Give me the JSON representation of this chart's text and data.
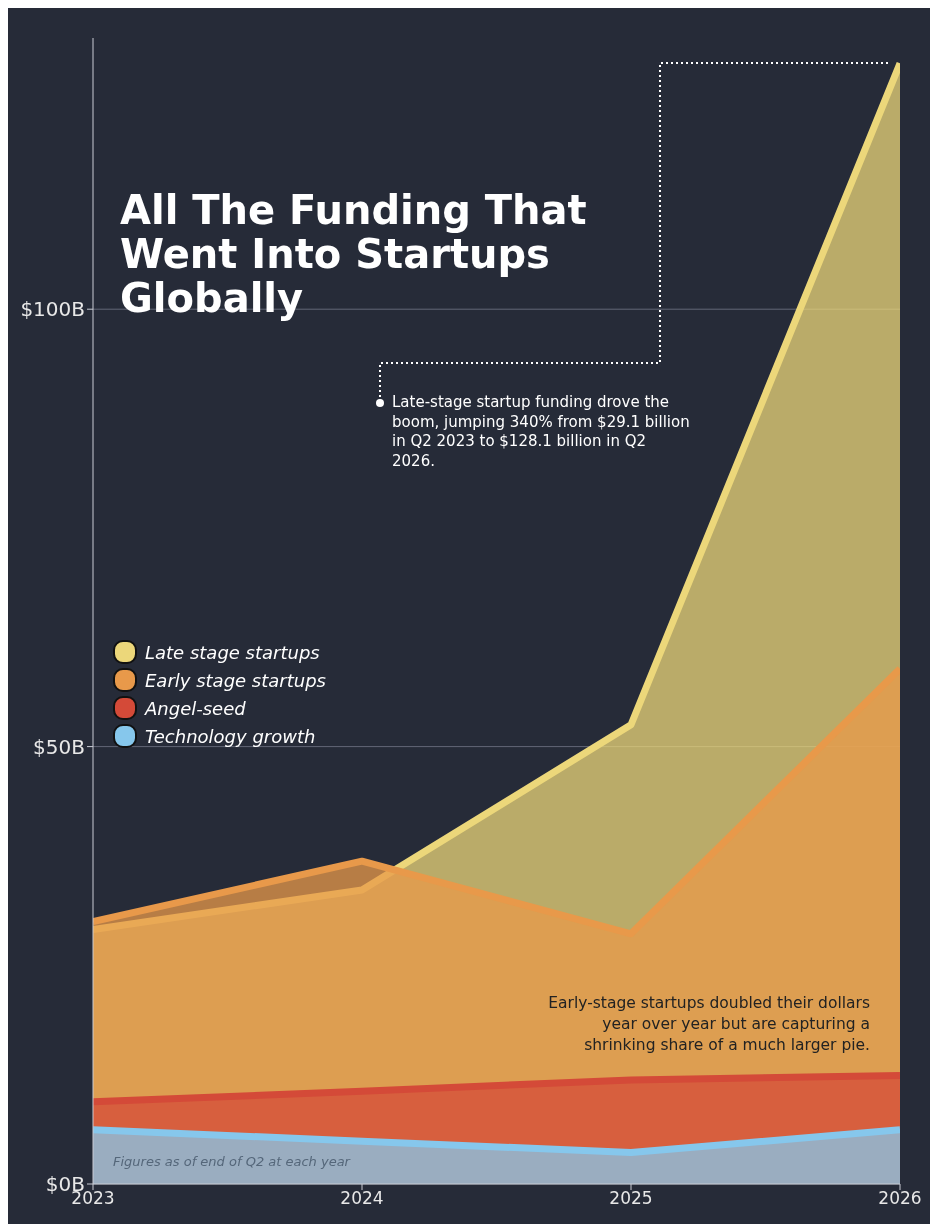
{
  "chart_data": {
    "type": "area",
    "title": "All The Funding That Went Into Startups Globally",
    "x": [
      2023,
      2024,
      2025,
      2026
    ],
    "xlim": [
      2023,
      2026
    ],
    "xticks": [
      2023,
      2024,
      2025,
      2026
    ],
    "ylim": [
      0,
      131
    ],
    "yticks": [
      {
        "value": 0,
        "label": "$0B"
      },
      {
        "value": 50,
        "label": "$50B"
      },
      {
        "value": 100,
        "label": "$100B"
      }
    ],
    "series": [
      {
        "name": "Late stage startups",
        "color": "#ecd77a",
        "values": [
          29.1,
          33.6,
          52.5,
          128.1
        ]
      },
      {
        "name": "Early stage startups",
        "color": "#e8994a",
        "values": [
          30.0,
          36.9,
          28.6,
          58.9
        ]
      },
      {
        "name": "Angel-seed",
        "color": "#d44a38",
        "values": [
          9.4,
          10.6,
          11.9,
          12.4
        ]
      },
      {
        "name": "Technology growth",
        "color": "#86c7ec",
        "values": [
          6.2,
          4.9,
          3.6,
          6.2
        ]
      }
    ],
    "annotations": [
      "Late-stage startup funding drove the boom, jumping 340% from $29.1 billion in Q2 2023 to $128.1 billion in Q2 2026.",
      "Early-stage startups doubled their dollars year over year but are capturing a shrinking share of a much larger pie.",
      "Figures as of end of Q2 at each year"
    ],
    "grid": "y",
    "legend": "left"
  }
}
